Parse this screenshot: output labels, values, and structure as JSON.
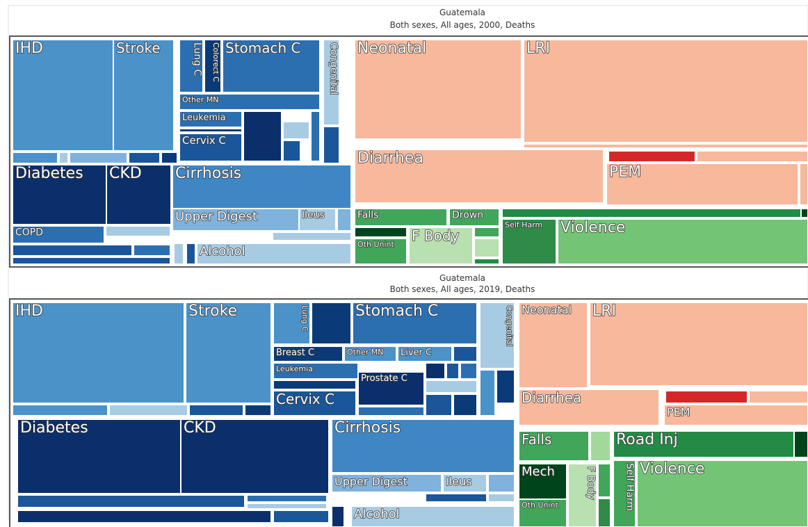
{
  "panels": [
    {
      "title": "Guatemala",
      "subtitle": "Both sexes, All ages, 2000, Deaths",
      "labels": [
        "IHD",
        "Stroke",
        "Lung C",
        "Colorect C",
        "Stomach C",
        "Congenital",
        "Other MN",
        "Leukemia",
        "Cervix C",
        "Diabetes",
        "CKD",
        "Cirrhosis",
        "Upper Digest",
        "Ileus",
        "COPD",
        "Alcohol",
        "Neonatal",
        "LRI",
        "Diarrhea",
        "PEM",
        "Falls",
        "Drown",
        "Oth Unint",
        "F Body",
        "Self Harm",
        "Violence"
      ]
    },
    {
      "title": "Guatemala",
      "subtitle": "Both sexes, All ages, 2019, Deaths",
      "labels": [
        "IHD",
        "Stroke",
        "Lung C",
        "Stomach C",
        "Congenital",
        "Breast C",
        "Other MN",
        "Liver C",
        "Leukemia",
        "Prostate C",
        "Cervix C",
        "Diabetes",
        "CKD",
        "Cirrhosis",
        "Upper Digest",
        "Ileus",
        "Alcohol",
        "Neonatal",
        "LRI",
        "Diarrhea",
        "PEM",
        "Falls",
        "Road Inj",
        "Mech",
        "Oth Unint",
        "F Body",
        "Self Harm",
        "Violence"
      ]
    }
  ]
}
